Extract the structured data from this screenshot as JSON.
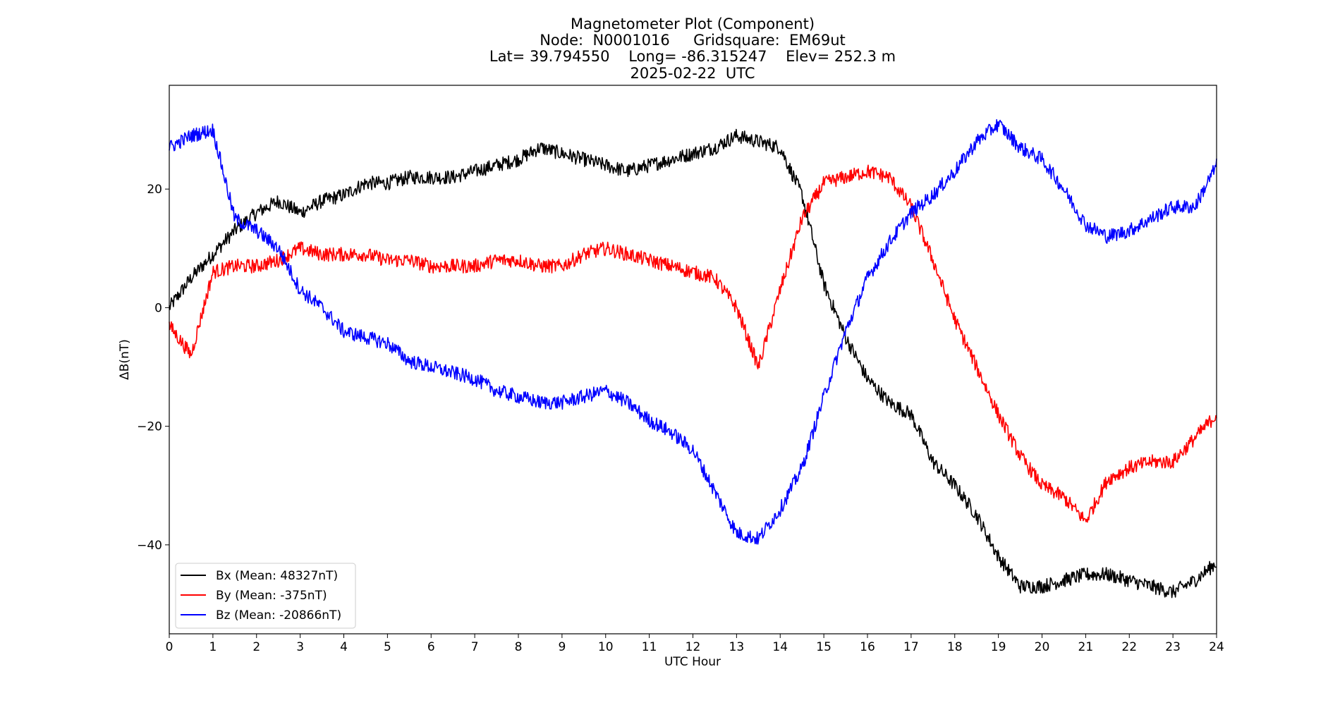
{
  "chart_data": {
    "type": "line",
    "title_lines": [
      "Magnetometer Plot (Component)",
      "Node:  N0001016     Gridsquare:  EM69ut",
      "Lat= 39.794550    Long= -86.315247    Elev= 252.3 m",
      "2025-02-22  UTC"
    ],
    "xlabel": "UTC Hour",
    "ylabel": "ΔB(nT)",
    "xlim": [
      0,
      24
    ],
    "ylim": [
      -55,
      37.5
    ],
    "xticks": [
      0,
      1,
      2,
      3,
      4,
      5,
      6,
      7,
      8,
      9,
      10,
      11,
      12,
      13,
      14,
      15,
      16,
      17,
      18,
      19,
      20,
      21,
      22,
      23,
      24
    ],
    "xtick_labels": [
      "0",
      "1",
      "2",
      "3",
      "4",
      "5",
      "6",
      "7",
      "8",
      "9",
      "10",
      "11",
      "12",
      "13",
      "14",
      "15",
      "16",
      "17",
      "18",
      "19",
      "20",
      "21",
      "22",
      "23",
      "24"
    ],
    "yticks": [
      20,
      0,
      -20,
      -40
    ],
    "ytick_labels": [
      "20",
      "0",
      "−20",
      "−40"
    ],
    "grid": false,
    "legend_position": "lower-left",
    "x": [
      0,
      0.5,
      1,
      1.5,
      2,
      2.5,
      3,
      3.5,
      4,
      4.5,
      5,
      5.5,
      6,
      6.5,
      7,
      7.5,
      8,
      8.5,
      9,
      9.5,
      10,
      10.5,
      11,
      11.5,
      12,
      12.5,
      13,
      13.5,
      14,
      14.5,
      15,
      15.5,
      16,
      16.5,
      17,
      17.5,
      18,
      18.5,
      19,
      19.5,
      20,
      20.5,
      21,
      21.5,
      22,
      22.5,
      23,
      23.5,
      24
    ],
    "series": [
      {
        "name": "Bx (Mean: 48327nT)",
        "color": "#000000",
        "values": [
          0,
          5,
          9,
          13,
          16,
          18,
          16,
          18,
          19,
          21,
          21,
          22,
          22,
          22,
          23,
          24,
          25,
          27,
          26,
          25,
          24,
          23,
          24,
          25,
          26,
          27,
          29,
          28,
          27,
          19,
          4,
          -5,
          -12,
          -16,
          -18,
          -26,
          -30,
          -35,
          -42,
          -47,
          -47,
          -46,
          -45,
          -45,
          -46,
          -47,
          -48,
          -46,
          -43
        ]
      },
      {
        "name": "By (Mean: -375nT)",
        "color": "#ff0000",
        "values": [
          -3,
          -8,
          6,
          7,
          7,
          8,
          10,
          9,
          9,
          9,
          8,
          8,
          7,
          7,
          7,
          8,
          8,
          7,
          7,
          9,
          10,
          9,
          8,
          7,
          6,
          5,
          0,
          -10,
          3,
          15,
          21,
          22,
          23,
          22,
          17,
          8,
          -2,
          -10,
          -18,
          -25,
          -30,
          -32,
          -36,
          -29,
          -27,
          -26,
          -26,
          -22,
          -18
        ]
      },
      {
        "name": "Bz (Mean: -20866nT)",
        "color": "#0000ff",
        "values": [
          27,
          29,
          30,
          15,
          13,
          10,
          3,
          0,
          -4,
          -5,
          -6,
          -9,
          -10,
          -11,
          -12,
          -14,
          -15,
          -16,
          -16,
          -15,
          -14,
          -16,
          -19,
          -21,
          -24,
          -31,
          -38,
          -39,
          -34,
          -27,
          -15,
          -4,
          5,
          11,
          16,
          19,
          23,
          28,
          31,
          27,
          25,
          20,
          14,
          12,
          13,
          15,
          17,
          17,
          24
        ]
      }
    ]
  }
}
